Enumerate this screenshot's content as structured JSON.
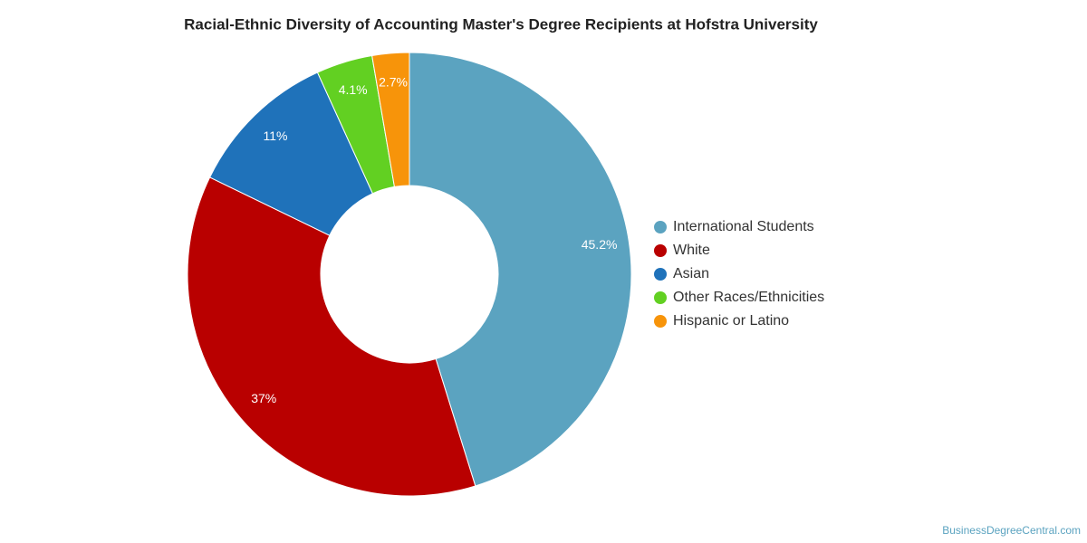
{
  "chart_data": {
    "type": "donut",
    "title": "Racial-Ethnic Diversity of Accounting Master's Degree Recipients at Hofstra University",
    "categories": [
      "International Students",
      "White",
      "Asian",
      "Other Races/Ethnicities",
      "Hispanic or Latino"
    ],
    "values": [
      45.2,
      37,
      11,
      4.1,
      2.7
    ],
    "value_labels": [
      "45.2%",
      "37%",
      "11%",
      "4.1%",
      "2.7%"
    ],
    "colors": [
      "#5ba3c0",
      "#b90000",
      "#1f72ba",
      "#62d022",
      "#f7940a"
    ],
    "legend": "right",
    "source": "BusinessDegreeCentral.com"
  }
}
